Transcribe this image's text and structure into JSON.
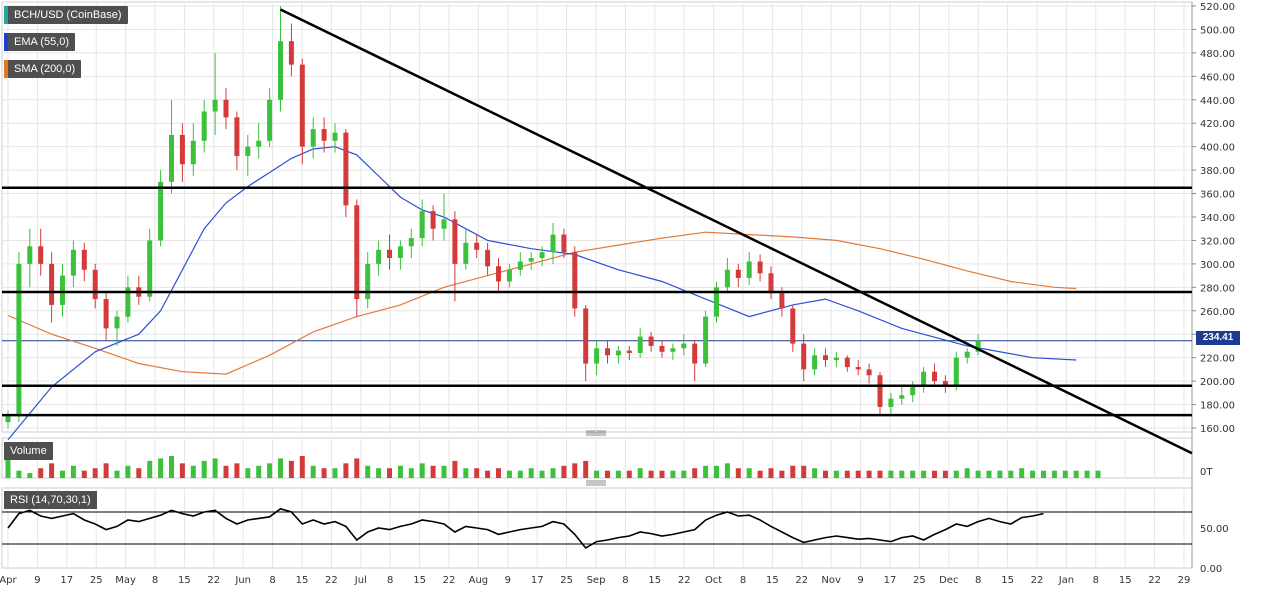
{
  "legend": {
    "symbol": "BCH/USD (CoinBase)",
    "ema": "EMA (55,0)",
    "sma": "SMA (200,0)",
    "symbol_color": "#26a69a",
    "ema_color": "#1d3fd6",
    "sma_color": "#e0782a"
  },
  "panes": {
    "volume_label": "Volume",
    "volume_axis_label": "0T",
    "rsi_label": "RSI (14,70,30,1)"
  },
  "last_price": "234.41",
  "colors": {
    "up": "#3cc13c",
    "down": "#d43a3a",
    "ema": "#2c4fd8",
    "sma": "#e07b3a",
    "trendline": "#000000",
    "grid": "#e6e6e6",
    "price_tag": "#1d3c8f"
  },
  "chart_data": {
    "type": "candlestick",
    "price_axis": {
      "ylim": [
        160,
        520
      ],
      "ticks": [
        "160.00",
        "180.00",
        "200.00",
        "220.00",
        "240.00",
        "260.00",
        "280.00",
        "300.00",
        "320.00",
        "340.00",
        "360.00",
        "380.00",
        "400.00",
        "420.00",
        "440.00",
        "460.00",
        "480.00",
        "500.00",
        "520.00"
      ]
    },
    "rsi_axis": {
      "ylim": [
        0,
        100
      ],
      "ticks": [
        "0.00",
        "50.00"
      ],
      "levels": [
        70,
        30
      ]
    },
    "x_ticks": [
      "Apr",
      "9",
      "17",
      "25",
      "May",
      "8",
      "15",
      "22",
      "Jun",
      "8",
      "15",
      "22",
      "Jul",
      "8",
      "15",
      "22",
      "Aug",
      "9",
      "17",
      "25",
      "Sep",
      "8",
      "15",
      "22",
      "Oct",
      "8",
      "15",
      "22",
      "Nov",
      "9",
      "17",
      "25",
      "Dec",
      "8",
      "15",
      "22",
      "Jan",
      "8",
      "15",
      "22",
      "29"
    ],
    "horizontal_levels": [
      365,
      276,
      196,
      171
    ],
    "trendline": {
      "from": [
        25,
        517
      ],
      "to": [
        101,
        173
      ]
    },
    "ema_55": [
      [
        0,
        150
      ],
      [
        4,
        195
      ],
      [
        8,
        225
      ],
      [
        12,
        240
      ],
      [
        14,
        260
      ],
      [
        16,
        295
      ],
      [
        18,
        330
      ],
      [
        20,
        352
      ],
      [
        22,
        366
      ],
      [
        24,
        378
      ],
      [
        26,
        390
      ],
      [
        28,
        398
      ],
      [
        30,
        400
      ],
      [
        32,
        393
      ],
      [
        34,
        375
      ],
      [
        36,
        357
      ],
      [
        38,
        346
      ],
      [
        40,
        340
      ],
      [
        42,
        330
      ],
      [
        44,
        320
      ],
      [
        48,
        313
      ],
      [
        52,
        308
      ],
      [
        56,
        295
      ],
      [
        60,
        285
      ],
      [
        64,
        270
      ],
      [
        68,
        255
      ],
      [
        72,
        265
      ],
      [
        75,
        270
      ],
      [
        78,
        260
      ],
      [
        82,
        245
      ],
      [
        88,
        230
      ],
      [
        94,
        220
      ],
      [
        98,
        218
      ]
    ],
    "sma_200": [
      [
        0,
        256
      ],
      [
        4,
        240
      ],
      [
        8,
        228
      ],
      [
        12,
        215
      ],
      [
        16,
        208
      ],
      [
        20,
        206
      ],
      [
        24,
        222
      ],
      [
        28,
        242
      ],
      [
        32,
        255
      ],
      [
        36,
        265
      ],
      [
        40,
        280
      ],
      [
        44,
        290
      ],
      [
        48,
        300
      ],
      [
        52,
        310
      ],
      [
        56,
        316
      ],
      [
        60,
        322
      ],
      [
        64,
        327
      ],
      [
        68,
        325
      ],
      [
        72,
        323
      ],
      [
        76,
        320
      ],
      [
        80,
        313
      ],
      [
        84,
        304
      ],
      [
        88,
        294
      ],
      [
        92,
        285
      ],
      [
        96,
        280
      ],
      [
        98,
        279
      ]
    ],
    "candles": [
      {
        "o": 165,
        "h": 175,
        "l": 160,
        "c": 170
      },
      {
        "o": 170,
        "h": 310,
        "l": 165,
        "c": 300
      },
      {
        "o": 300,
        "h": 330,
        "l": 280,
        "c": 315
      },
      {
        "o": 315,
        "h": 330,
        "l": 290,
        "c": 300
      },
      {
        "o": 300,
        "h": 310,
        "l": 250,
        "c": 265
      },
      {
        "o": 265,
        "h": 300,
        "l": 255,
        "c": 290
      },
      {
        "o": 290,
        "h": 320,
        "l": 280,
        "c": 312
      },
      {
        "o": 312,
        "h": 318,
        "l": 285,
        "c": 295
      },
      {
        "o": 295,
        "h": 300,
        "l": 262,
        "c": 270
      },
      {
        "o": 270,
        "h": 275,
        "l": 235,
        "c": 245
      },
      {
        "o": 245,
        "h": 260,
        "l": 230,
        "c": 255
      },
      {
        "o": 255,
        "h": 290,
        "l": 250,
        "c": 280
      },
      {
        "o": 280,
        "h": 290,
        "l": 265,
        "c": 272
      },
      {
        "o": 272,
        "h": 330,
        "l": 268,
        "c": 320
      },
      {
        "o": 320,
        "h": 380,
        "l": 315,
        "c": 370
      },
      {
        "o": 370,
        "h": 440,
        "l": 360,
        "c": 410
      },
      {
        "o": 410,
        "h": 420,
        "l": 370,
        "c": 385
      },
      {
        "o": 385,
        "h": 420,
        "l": 375,
        "c": 405
      },
      {
        "o": 405,
        "h": 440,
        "l": 395,
        "c": 430
      },
      {
        "o": 430,
        "h": 480,
        "l": 410,
        "c": 440
      },
      {
        "o": 440,
        "h": 450,
        "l": 415,
        "c": 425
      },
      {
        "o": 425,
        "h": 430,
        "l": 380,
        "c": 392
      },
      {
        "o": 392,
        "h": 410,
        "l": 375,
        "c": 400
      },
      {
        "o": 400,
        "h": 420,
        "l": 390,
        "c": 405
      },
      {
        "o": 405,
        "h": 450,
        "l": 400,
        "c": 440
      },
      {
        "o": 440,
        "h": 520,
        "l": 430,
        "c": 490
      },
      {
        "o": 490,
        "h": 505,
        "l": 460,
        "c": 470
      },
      {
        "o": 470,
        "h": 475,
        "l": 385,
        "c": 400
      },
      {
        "o": 400,
        "h": 425,
        "l": 390,
        "c": 415
      },
      {
        "o": 415,
        "h": 425,
        "l": 395,
        "c": 405
      },
      {
        "o": 405,
        "h": 420,
        "l": 395,
        "c": 412
      },
      {
        "o": 412,
        "h": 415,
        "l": 340,
        "c": 350
      },
      {
        "o": 350,
        "h": 355,
        "l": 255,
        "c": 270
      },
      {
        "o": 270,
        "h": 310,
        "l": 262,
        "c": 300
      },
      {
        "o": 300,
        "h": 320,
        "l": 290,
        "c": 312
      },
      {
        "o": 312,
        "h": 325,
        "l": 295,
        "c": 305
      },
      {
        "o": 305,
        "h": 320,
        "l": 295,
        "c": 315
      },
      {
        "o": 315,
        "h": 330,
        "l": 305,
        "c": 322
      },
      {
        "o": 322,
        "h": 355,
        "l": 315,
        "c": 345
      },
      {
        "o": 345,
        "h": 350,
        "l": 320,
        "c": 330
      },
      {
        "o": 330,
        "h": 360,
        "l": 320,
        "c": 338
      },
      {
        "o": 338,
        "h": 345,
        "l": 268,
        "c": 300
      },
      {
        "o": 300,
        "h": 330,
        "l": 295,
        "c": 318
      },
      {
        "o": 318,
        "h": 325,
        "l": 305,
        "c": 312
      },
      {
        "o": 312,
        "h": 318,
        "l": 290,
        "c": 298
      },
      {
        "o": 298,
        "h": 305,
        "l": 275,
        "c": 285
      },
      {
        "o": 285,
        "h": 300,
        "l": 280,
        "c": 295
      },
      {
        "o": 295,
        "h": 310,
        "l": 290,
        "c": 302
      },
      {
        "o": 302,
        "h": 310,
        "l": 295,
        "c": 305
      },
      {
        "o": 305,
        "h": 315,
        "l": 298,
        "c": 310
      },
      {
        "o": 310,
        "h": 335,
        "l": 300,
        "c": 325
      },
      {
        "o": 325,
        "h": 330,
        "l": 305,
        "c": 310
      },
      {
        "o": 310,
        "h": 315,
        "l": 255,
        "c": 262
      },
      {
        "o": 262,
        "h": 265,
        "l": 200,
        "c": 215
      },
      {
        "o": 215,
        "h": 235,
        "l": 205,
        "c": 228
      },
      {
        "o": 228,
        "h": 235,
        "l": 215,
        "c": 222
      },
      {
        "o": 222,
        "h": 230,
        "l": 215,
        "c": 226
      },
      {
        "o": 226,
        "h": 230,
        "l": 218,
        "c": 224
      },
      {
        "o": 224,
        "h": 245,
        "l": 220,
        "c": 238
      },
      {
        "o": 238,
        "h": 242,
        "l": 225,
        "c": 230
      },
      {
        "o": 230,
        "h": 235,
        "l": 220,
        "c": 225
      },
      {
        "o": 225,
        "h": 232,
        "l": 218,
        "c": 228
      },
      {
        "o": 228,
        "h": 240,
        "l": 222,
        "c": 232
      },
      {
        "o": 232,
        "h": 235,
        "l": 200,
        "c": 215
      },
      {
        "o": 215,
        "h": 260,
        "l": 212,
        "c": 255
      },
      {
        "o": 255,
        "h": 285,
        "l": 250,
        "c": 280
      },
      {
        "o": 280,
        "h": 305,
        "l": 275,
        "c": 295
      },
      {
        "o": 295,
        "h": 300,
        "l": 280,
        "c": 288
      },
      {
        "o": 288,
        "h": 310,
        "l": 282,
        "c": 302
      },
      {
        "o": 302,
        "h": 308,
        "l": 285,
        "c": 292
      },
      {
        "o": 292,
        "h": 298,
        "l": 270,
        "c": 275
      },
      {
        "o": 275,
        "h": 280,
        "l": 255,
        "c": 262
      },
      {
        "o": 262,
        "h": 265,
        "l": 225,
        "c": 232
      },
      {
        "o": 232,
        "h": 240,
        "l": 200,
        "c": 210
      },
      {
        "o": 210,
        "h": 228,
        "l": 205,
        "c": 222
      },
      {
        "o": 222,
        "h": 228,
        "l": 212,
        "c": 218
      },
      {
        "o": 218,
        "h": 225,
        "l": 212,
        "c": 220
      },
      {
        "o": 220,
        "h": 222,
        "l": 208,
        "c": 212
      },
      {
        "o": 212,
        "h": 218,
        "l": 205,
        "c": 210
      },
      {
        "o": 210,
        "h": 215,
        "l": 198,
        "c": 205
      },
      {
        "o": 205,
        "h": 208,
        "l": 170,
        "c": 178
      },
      {
        "o": 178,
        "h": 190,
        "l": 172,
        "c": 185
      },
      {
        "o": 185,
        "h": 195,
        "l": 180,
        "c": 188
      },
      {
        "o": 188,
        "h": 200,
        "l": 182,
        "c": 195
      },
      {
        "o": 195,
        "h": 212,
        "l": 190,
        "c": 208
      },
      {
        "o": 208,
        "h": 215,
        "l": 195,
        "c": 200
      },
      {
        "o": 200,
        "h": 205,
        "l": 190,
        "c": 195
      },
      {
        "o": 195,
        "h": 225,
        "l": 192,
        "c": 220
      },
      {
        "o": 220,
        "h": 228,
        "l": 215,
        "c": 225
      },
      {
        "o": 225,
        "h": 240,
        "l": 222,
        "c": 234.41
      }
    ],
    "volume": [
      9,
      3,
      2,
      4,
      6,
      3,
      5,
      3,
      4,
      6,
      3,
      5,
      4,
      7,
      8,
      9,
      6,
      5,
      7,
      8,
      5,
      6,
      4,
      5,
      6,
      8,
      7,
      9,
      5,
      4,
      4,
      6,
      8,
      5,
      4,
      4,
      5,
      4,
      6,
      5,
      5,
      7,
      4,
      4,
      3,
      4,
      3,
      3,
      4,
      3,
      4,
      5,
      6,
      7,
      3,
      3,
      3,
      3,
      4,
      3,
      3,
      3,
      3,
      4,
      5,
      5,
      6,
      4,
      4,
      3,
      4,
      3,
      5,
      5,
      4,
      3,
      3,
      3,
      3,
      3,
      3,
      3,
      3,
      3,
      3,
      3,
      3,
      3,
      4,
      3,
      3,
      3,
      3,
      4,
      3,
      3,
      3,
      3,
      3,
      3,
      3
    ],
    "rsi": [
      50,
      68,
      72,
      65,
      62,
      65,
      68,
      60,
      55,
      48,
      52,
      60,
      58,
      62,
      66,
      72,
      68,
      65,
      70,
      72,
      62,
      55,
      60,
      62,
      64,
      74,
      70,
      55,
      60,
      55,
      58,
      52,
      35,
      45,
      50,
      48,
      52,
      55,
      60,
      58,
      55,
      45,
      52,
      50,
      48,
      42,
      45,
      48,
      50,
      52,
      58,
      55,
      42,
      25,
      33,
      35,
      38,
      40,
      45,
      43,
      40,
      42,
      45,
      48,
      60,
      66,
      70,
      65,
      66,
      60,
      52,
      45,
      38,
      32,
      35,
      38,
      40,
      38,
      36,
      37,
      35,
      33,
      38,
      40,
      35,
      42,
      48,
      55,
      52,
      58,
      62,
      58,
      55,
      63,
      65,
      68
    ]
  }
}
